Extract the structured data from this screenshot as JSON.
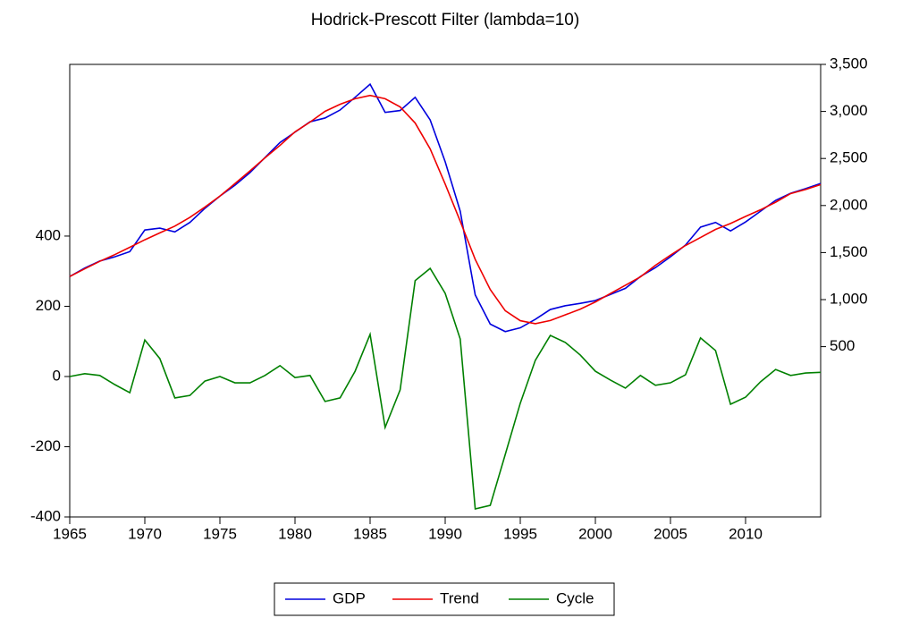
{
  "chart_data": {
    "type": "line",
    "title": "Hodrick-Prescott Filter (lambda=10)",
    "x": [
      1965,
      1966,
      1967,
      1968,
      1969,
      1970,
      1971,
      1972,
      1973,
      1974,
      1975,
      1976,
      1977,
      1978,
      1979,
      1980,
      1981,
      1982,
      1983,
      1984,
      1985,
      1986,
      1987,
      1988,
      1989,
      1990,
      1991,
      1992,
      1993,
      1994,
      1995,
      1996,
      1997,
      1998,
      1999,
      2000,
      2001,
      2002,
      2003,
      2004,
      2005,
      2006,
      2007,
      2008,
      2009,
      2010,
      2011,
      2012,
      2013,
      2014,
      2015
    ],
    "series": [
      {
        "name": "GDP",
        "color": "#0000dd",
        "axis": "y2",
        "values": [
          1245,
          1335,
          1410,
          1455,
          1510,
          1740,
          1760,
          1720,
          1820,
          1970,
          2100,
          2215,
          2350,
          2510,
          2670,
          2780,
          2890,
          2930,
          3015,
          3150,
          3290,
          2990,
          3010,
          3150,
          2910,
          2465,
          1940,
          1050,
          740,
          660,
          700,
          790,
          895,
          935,
          960,
          990,
          1055,
          1120,
          1245,
          1340,
          1455,
          1580,
          1770,
          1820,
          1730,
          1825,
          1940,
          2055,
          2130,
          2180,
          2235
        ]
      },
      {
        "name": "Trend",
        "color": "#ee0000",
        "axis": "y2",
        "values": [
          1245,
          1327,
          1407,
          1478,
          1556,
          1636,
          1709,
          1781,
          1874,
          1983,
          2100,
          2233,
          2368,
          2507,
          2639,
          2783,
          2887,
          3001,
          3076,
          3135,
          3170,
          3135,
          3048,
          2877,
          2602,
          2228,
          1833,
          1427,
          1107,
          882,
          776,
          744,
          778,
          838,
          899,
          975,
          1065,
          1153,
          1242,
          1365,
          1473,
          1575,
          1660,
          1746,
          1809,
          1884,
          1955,
          2035,
          2127,
          2170,
          2223
        ]
      },
      {
        "name": "Cycle",
        "color": "#008000",
        "values": [
          0,
          8,
          3,
          -23,
          -46,
          104,
          51,
          -61,
          -54,
          -13,
          0,
          -18,
          -18,
          3,
          31,
          -3,
          3,
          -71,
          -61,
          15,
          120,
          -145,
          -38,
          273,
          308,
          237,
          107,
          -377,
          -367,
          -222,
          -76,
          46,
          117,
          97,
          61,
          15,
          -10,
          -33,
          3,
          -25,
          -18,
          5,
          110,
          74,
          -79,
          -59,
          -15,
          20,
          3,
          10,
          12
        ]
      }
    ],
    "xlim": [
      1965,
      2015
    ],
    "xticks": [
      1965,
      1970,
      1975,
      1980,
      1985,
      1990,
      1995,
      2000,
      2005,
      2010
    ],
    "ylim": [
      -400,
      889
    ],
    "yticks": [
      -400,
      -200,
      0,
      200,
      400
    ],
    "y2lim": [
      -1310,
      3500
    ],
    "y2ticks": [
      {
        "value": 500,
        "label": "500"
      },
      {
        "value": 1000,
        "label": "1,000"
      },
      {
        "value": 1500,
        "label": "1,500"
      },
      {
        "value": 2000,
        "label": "2,000"
      },
      {
        "value": 2500,
        "label": "2,500"
      },
      {
        "value": 3000,
        "label": "3,000"
      },
      {
        "value": 3500,
        "label": "3,500"
      }
    ],
    "legend": "bottom"
  }
}
